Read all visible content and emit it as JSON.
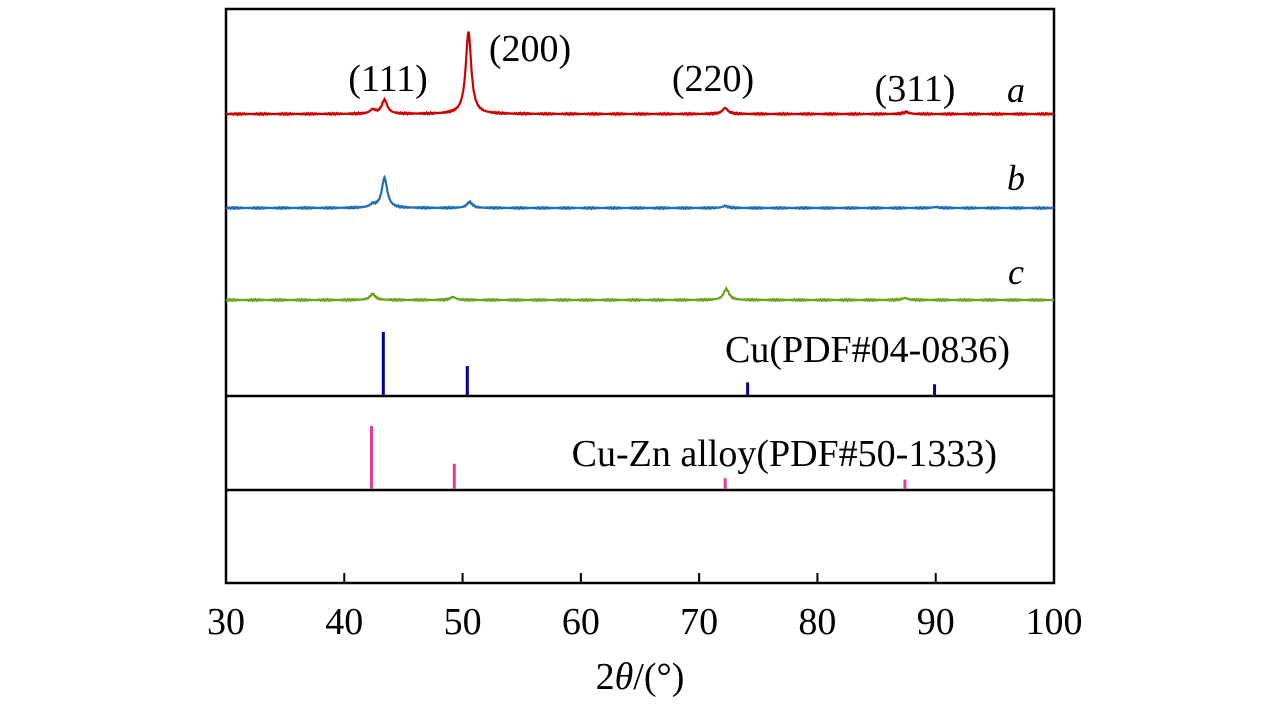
{
  "chart_data": {
    "type": "line",
    "xlabel_prefix": "2",
    "xlabel_symbol": "θ",
    "xlabel_suffix": "/(°)",
    "xlim": [
      30,
      100
    ],
    "xticks": [
      30,
      40,
      50,
      60,
      70,
      80,
      90,
      100
    ],
    "grid": false,
    "series": [
      {
        "name": "a",
        "color": "#cc0000",
        "peaks": [
          {
            "x": 42.4,
            "h": 0.04
          },
          {
            "x": 43.4,
            "h": 0.14
          },
          {
            "x": 50.5,
            "h": 0.82
          },
          {
            "x": 72.2,
            "h": 0.06
          },
          {
            "x": 87.5,
            "h": 0.02
          }
        ]
      },
      {
        "name": "b",
        "color": "#1f6fb4",
        "peaks": [
          {
            "x": 42.4,
            "h": 0.03
          },
          {
            "x": 43.4,
            "h": 0.3
          },
          {
            "x": 50.6,
            "h": 0.06
          },
          {
            "x": 72.2,
            "h": 0.02
          },
          {
            "x": 90.0,
            "h": 0.01
          }
        ]
      },
      {
        "name": "c",
        "color": "#6aa51b",
        "peaks": [
          {
            "x": 42.4,
            "h": 0.06
          },
          {
            "x": 49.2,
            "h": 0.03
          },
          {
            "x": 72.3,
            "h": 0.11
          },
          {
            "x": 87.4,
            "h": 0.02
          }
        ]
      }
    ],
    "references": [
      {
        "label": "Cu(PDF#04-0836)",
        "color": "#000099",
        "lines": [
          {
            "x": 43.3,
            "intensity": 100
          },
          {
            "x": 50.4,
            "intensity": 46
          },
          {
            "x": 74.1,
            "intensity": 20
          },
          {
            "x": 89.9,
            "intensity": 17
          }
        ]
      },
      {
        "label": "Cu-Zn alloy(PDF#50-1333)",
        "color": "#e8389a",
        "lines": [
          {
            "x": 42.3,
            "intensity": 100
          },
          {
            "x": 49.3,
            "intensity": 40
          },
          {
            "x": 72.2,
            "intensity": 17
          },
          {
            "x": 87.4,
            "intensity": 15
          }
        ]
      }
    ],
    "annotations": [
      "(111)",
      "(200)",
      "(220)",
      "(311)"
    ]
  }
}
